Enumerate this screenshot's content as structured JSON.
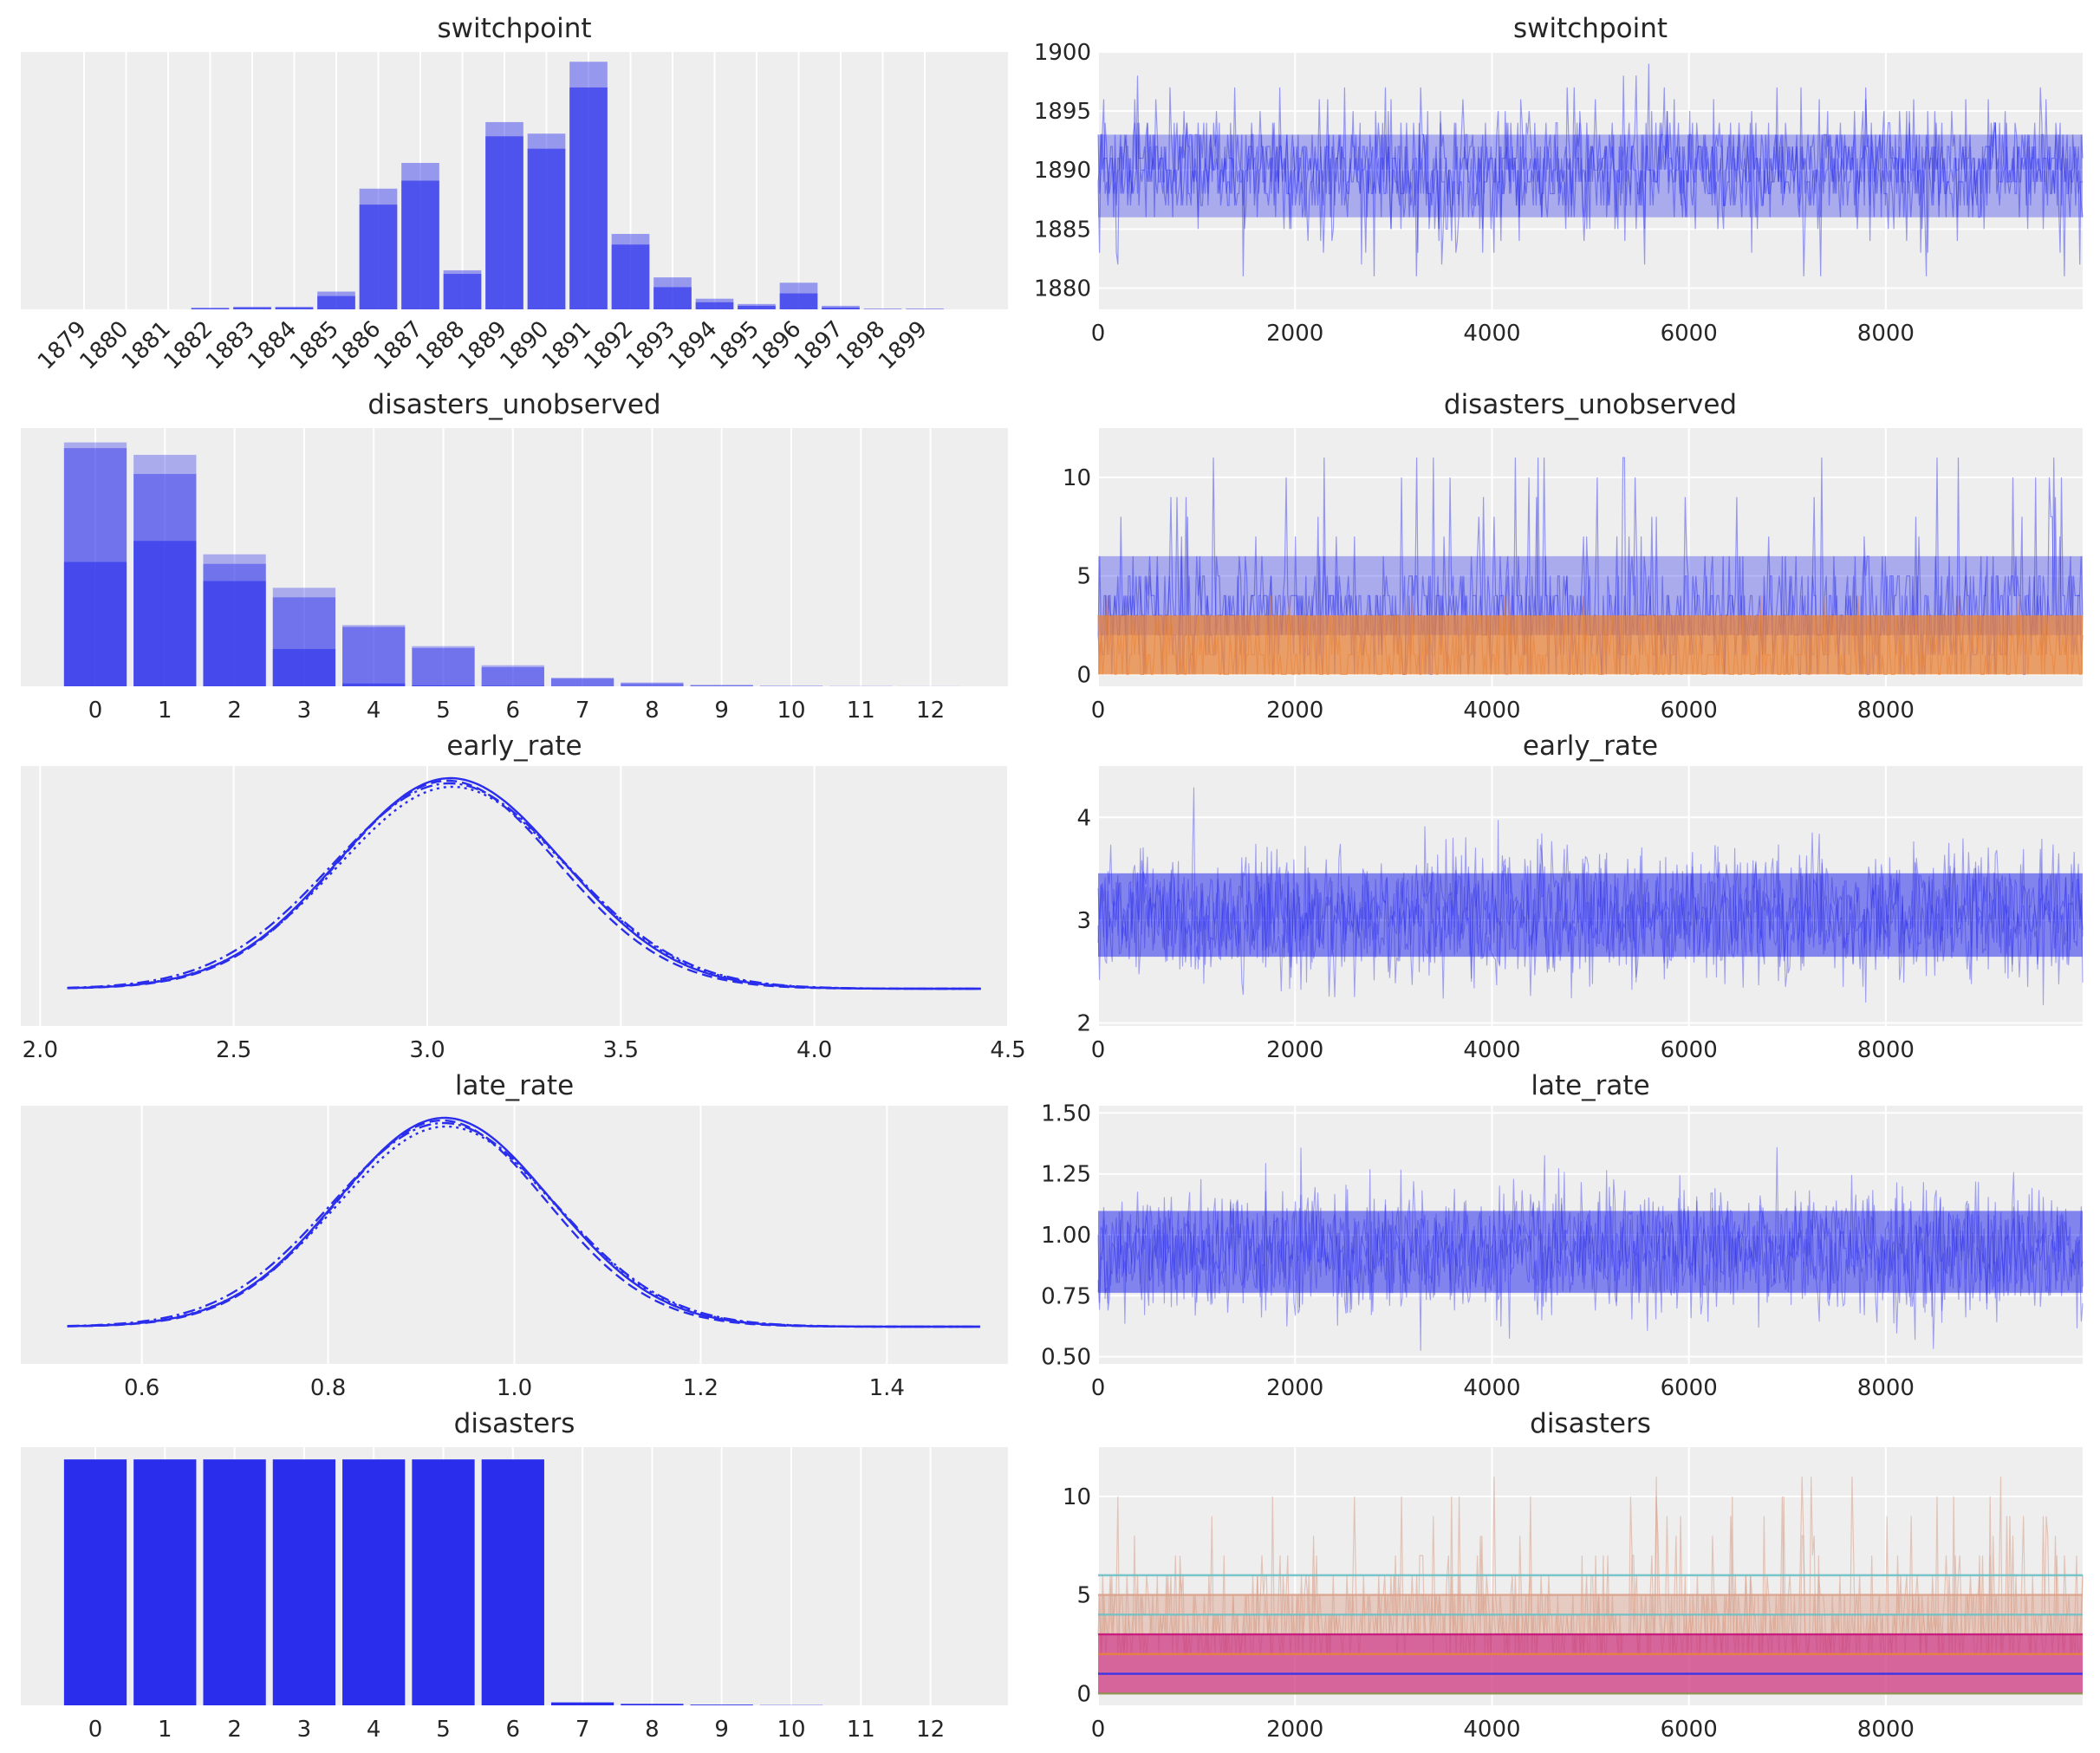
{
  "colors": {
    "background": "#eeeeee",
    "grid": "#ffffff",
    "text": "#262626",
    "blue": "#2a2eec",
    "orange": "#e8833a",
    "salmon": "#d9a08b",
    "magenta": "#c8137c",
    "teal": "#6dc0c4",
    "olive": "#8c8f4a"
  },
  "chart_data": [
    {
      "type": "bar",
      "title": "switchpoint",
      "categories": [
        "1879",
        "1880",
        "1881",
        "1882",
        "1883",
        "1884",
        "1885",
        "1886",
        "1887",
        "1888",
        "1889",
        "1890",
        "1891",
        "1892",
        "1893",
        "1894",
        "1895",
        "1896",
        "1897",
        "1898",
        "1899"
      ],
      "series": [
        {
          "values": [
            0,
            0,
            0,
            0.02,
            0.03,
            0.03,
            0.2,
            1.36,
            1.65,
            0.44,
            2.11,
            1.98,
            2.79,
            0.85,
            0.36,
            0.12,
            0.06,
            0.3,
            0.04,
            0.01,
            0.01
          ]
        },
        {
          "values": [
            0,
            0,
            0,
            0.01,
            0.02,
            0.02,
            0.15,
            1.18,
            1.45,
            0.4,
            1.95,
            1.81,
            2.5,
            0.73,
            0.25,
            0.08,
            0.04,
            0.18,
            0.02,
            0,
            0
          ]
        }
      ],
      "ylim": [
        0,
        2.9
      ],
      "grid": true
    },
    {
      "type": "line",
      "title": "switchpoint",
      "x_ticks": [
        "0",
        "2000",
        "4000",
        "6000",
        "8000"
      ],
      "y_ticks": [
        "1880",
        "1885",
        "1890",
        "1895",
        "1900"
      ],
      "xlim": [
        0,
        9999
      ],
      "ylim": [
        1878.2,
        1900
      ],
      "series_band": {
        "center": 1890,
        "dense_low": 1886,
        "dense_high": 1893,
        "spike_low": 1879,
        "spike_high": 1899
      },
      "grid": true
    },
    {
      "type": "bar",
      "title": "disasters_unobserved",
      "categories": [
        "0",
        "1",
        "2",
        "3",
        "4",
        "5",
        "6",
        "7",
        "8",
        "9",
        "10",
        "11",
        "12"
      ],
      "series": [
        {
          "values": [
            2.55,
            2.42,
            1.38,
            1.03,
            0.64,
            0.42,
            0.22,
            0.09,
            0.04,
            0.015,
            0.005,
            0.002,
            0.001
          ]
        },
        {
          "values": [
            2.49,
            2.22,
            1.28,
            0.93,
            0.62,
            0.4,
            0.2,
            0.08,
            0.03,
            0.01,
            0.003,
            0.001,
            0
          ]
        },
        {
          "values": [
            1.3,
            1.52,
            1.1,
            0.39,
            0.03,
            0.01,
            0.005,
            0,
            0,
            0,
            0,
            0,
            0
          ]
        }
      ],
      "ylim": [
        0,
        2.7
      ],
      "grid": true
    },
    {
      "type": "line",
      "title": "disasters_unobserved",
      "x_ticks": [
        "0",
        "2000",
        "4000",
        "6000",
        "8000"
      ],
      "y_ticks": [
        "0",
        "5",
        "10"
      ],
      "xlim": [
        0,
        9999
      ],
      "ylim": [
        -0.6,
        12.5
      ],
      "series_band": {
        "blue_low": 2,
        "blue_high": 6,
        "blue_spike": 12,
        "orange_low": 0,
        "orange_high": 3
      },
      "grid": true
    },
    {
      "type": "line",
      "title": "early_rate",
      "x_ticks": [
        "2.0",
        "2.5",
        "3.0",
        "3.5",
        "4.0",
        "4.5"
      ],
      "xlim": [
        1.95,
        4.5
      ],
      "kde": {
        "mean": 3.06,
        "sd": 0.29,
        "x_min": 2.07,
        "x_max": 4.43
      },
      "grid": true
    },
    {
      "type": "line",
      "title": "early_rate",
      "x_ticks": [
        "0",
        "2000",
        "4000",
        "6000",
        "8000"
      ],
      "y_ticks": [
        "2",
        "3",
        "4"
      ],
      "xlim": [
        0,
        9999
      ],
      "ylim": [
        1.97,
        4.5
      ],
      "series_band": {
        "center": 3.05,
        "sd": 0.29,
        "spike_low": 2.1,
        "spike_high": 4.4
      },
      "grid": true
    },
    {
      "type": "line",
      "title": "late_rate",
      "x_ticks": [
        "0.6",
        "0.8",
        "1.0",
        "1.2",
        "1.4"
      ],
      "xlim": [
        0.47,
        1.53
      ],
      "kde": {
        "mean": 0.925,
        "sd": 0.115,
        "x_min": 0.52,
        "x_max": 1.5
      },
      "grid": true
    },
    {
      "type": "line",
      "title": "late_rate",
      "x_ticks": [
        "0",
        "2000",
        "4000",
        "6000",
        "8000"
      ],
      "y_ticks": [
        "0.50",
        "0.75",
        "1.00",
        "1.25",
        "1.50"
      ],
      "xlim": [
        0,
        9999
      ],
      "ylim": [
        0.47,
        1.53
      ],
      "series_band": {
        "center": 0.93,
        "sd": 0.12,
        "spike_low": 0.5,
        "spike_high": 1.5
      },
      "grid": true
    },
    {
      "type": "bar",
      "title": "disasters",
      "categories": [
        "0",
        "1",
        "2",
        "3",
        "4",
        "5",
        "6",
        "7",
        "8",
        "9",
        "10",
        "11",
        "12"
      ],
      "series": [
        {
          "values": [
            1,
            1,
            1,
            1,
            1,
            1,
            1,
            0.012,
            0.006,
            0.003,
            0.001,
            0,
            0
          ]
        }
      ],
      "ylim": [
        0,
        1.05
      ],
      "grid": true
    },
    {
      "type": "line",
      "title": "disasters",
      "x_ticks": [
        "0",
        "2000",
        "4000",
        "6000",
        "8000"
      ],
      "y_ticks": [
        "0",
        "5",
        "10"
      ],
      "xlim": [
        0,
        9999
      ],
      "ylim": [
        -0.6,
        12.5
      ],
      "constant_levels": [
        0,
        1,
        2,
        3,
        4,
        5,
        6
      ],
      "grid": true
    }
  ]
}
